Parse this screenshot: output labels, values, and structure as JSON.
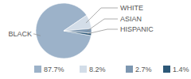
{
  "chart_data": {
    "type": "pie",
    "categories": [
      "BLACK",
      "WHITE",
      "ASIAN",
      "HISPANIC"
    ],
    "values": [
      87.7,
      8.2,
      2.7,
      1.4
    ],
    "value_labels": [
      "87.7%",
      "8.2%",
      "2.7%",
      "1.4%"
    ],
    "colors": [
      "#9cb2c9",
      "#d3dde8",
      "#7d97b1",
      "#2d5878"
    ],
    "data_labels": true
  }
}
